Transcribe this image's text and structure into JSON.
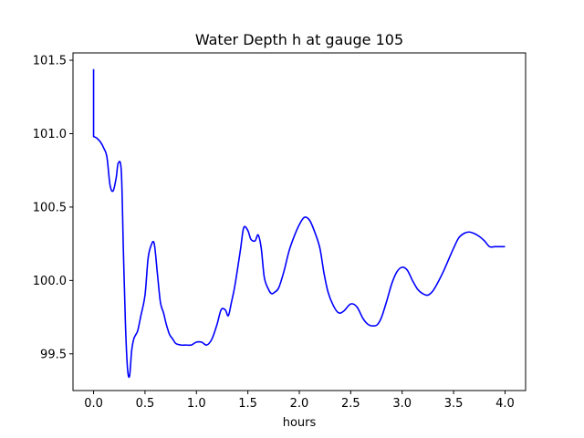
{
  "chart_data": {
    "type": "line",
    "title": "Water Depth h at gauge 105",
    "xlabel": "hours",
    "ylabel": "",
    "xlim": [
      -0.2,
      4.2
    ],
    "ylim": [
      99.25,
      101.55
    ],
    "xticks": [
      0.0,
      0.5,
      1.0,
      1.5,
      2.0,
      2.5,
      3.0,
      3.5,
      4.0
    ],
    "xtick_labels": [
      "0.0",
      "0.5",
      "1.0",
      "1.5",
      "2.0",
      "2.5",
      "3.0",
      "3.5",
      "4.0"
    ],
    "yticks": [
      99.5,
      100.0,
      100.5,
      101.0,
      101.5
    ],
    "ytick_labels": [
      "99.5",
      "100.0",
      "100.5",
      "101.0",
      "101.5"
    ],
    "grid": false,
    "series": [
      {
        "color": "#0000ff",
        "x": [
          0.0,
          0.0,
          0.0,
          0.03,
          0.07,
          0.1,
          0.13,
          0.16,
          0.19,
          0.22,
          0.24,
          0.27,
          0.29,
          0.31,
          0.33,
          0.35,
          0.37,
          0.39,
          0.41,
          0.43,
          0.46,
          0.5,
          0.53,
          0.56,
          0.59,
          0.62,
          0.65,
          0.68,
          0.7,
          0.72,
          0.74,
          0.77,
          0.8,
          0.85,
          0.9,
          0.95,
          1.0,
          1.05,
          1.1,
          1.15,
          1.2,
          1.24,
          1.28,
          1.31,
          1.34,
          1.37,
          1.4,
          1.43,
          1.46,
          1.5,
          1.53,
          1.57,
          1.6,
          1.63,
          1.66,
          1.7,
          1.73,
          1.76,
          1.8,
          1.85,
          1.9,
          1.95,
          2.0,
          2.05,
          2.1,
          2.15,
          2.2,
          2.24,
          2.28,
          2.33,
          2.38,
          2.43,
          2.5,
          2.56,
          2.62,
          2.67,
          2.72,
          2.76,
          2.8,
          2.85,
          2.9,
          2.95,
          3.0,
          3.05,
          3.1,
          3.15,
          3.2,
          3.25,
          3.3,
          3.35,
          3.4,
          3.45,
          3.5,
          3.55,
          3.6,
          3.65,
          3.7,
          3.75,
          3.8,
          3.85,
          3.9,
          3.95,
          4.0
        ],
        "y": [
          101.44,
          100.98,
          100.98,
          100.97,
          100.94,
          100.9,
          100.84,
          100.65,
          100.61,
          100.7,
          100.8,
          100.74,
          100.2,
          99.7,
          99.4,
          99.35,
          99.52,
          99.6,
          99.63,
          99.66,
          99.76,
          99.9,
          100.15,
          100.24,
          100.25,
          100.05,
          99.85,
          99.78,
          99.72,
          99.67,
          99.63,
          99.6,
          99.57,
          99.56,
          99.56,
          99.56,
          99.58,
          99.58,
          99.56,
          99.6,
          99.7,
          99.8,
          99.8,
          99.76,
          99.85,
          99.95,
          100.08,
          100.22,
          100.36,
          100.34,
          100.28,
          100.27,
          100.31,
          100.22,
          100.02,
          99.94,
          99.91,
          99.92,
          99.95,
          100.06,
          100.2,
          100.3,
          100.38,
          100.43,
          100.41,
          100.33,
          100.22,
          100.05,
          99.92,
          99.83,
          99.78,
          99.79,
          99.84,
          99.82,
          99.74,
          99.7,
          99.69,
          99.7,
          99.75,
          99.86,
          99.98,
          100.06,
          100.09,
          100.07,
          100.0,
          99.94,
          99.91,
          99.9,
          99.93,
          99.99,
          100.06,
          100.14,
          100.22,
          100.29,
          100.32,
          100.33,
          100.32,
          100.3,
          100.27,
          100.23,
          100.23,
          100.23,
          100.23
        ]
      }
    ]
  }
}
